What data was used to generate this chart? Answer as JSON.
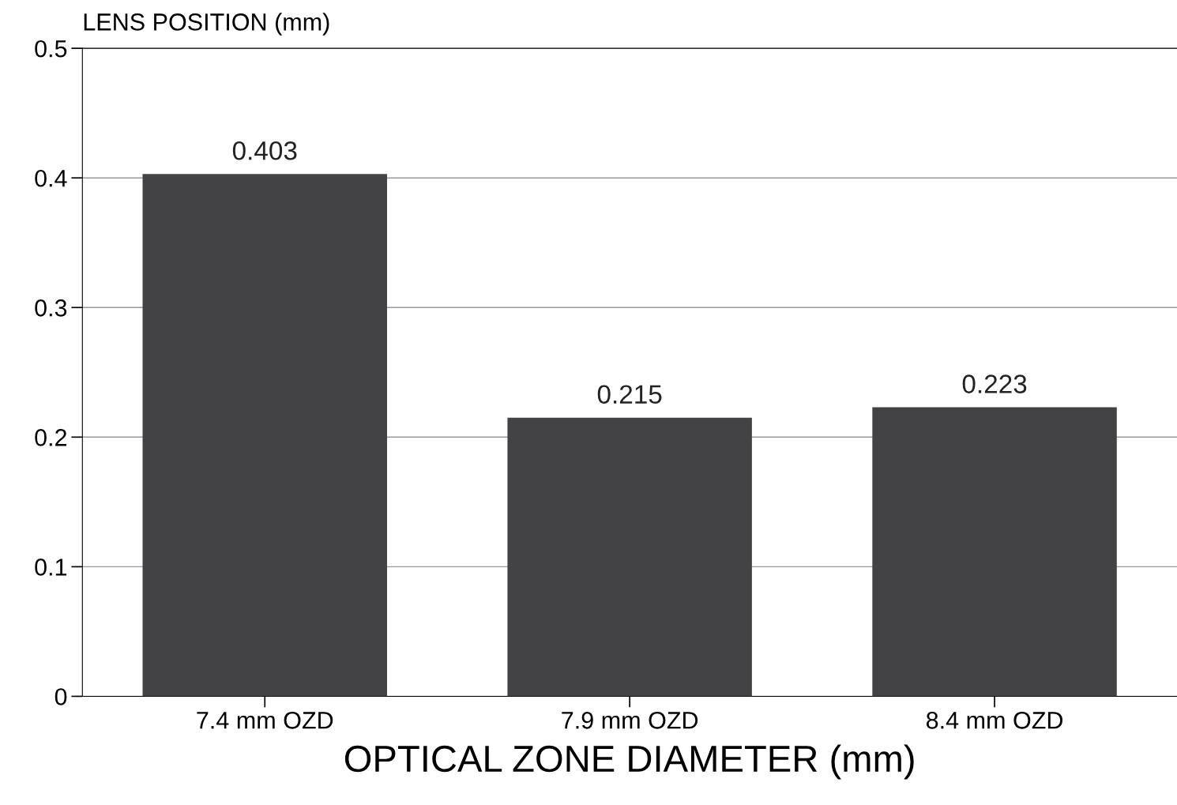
{
  "chart_data": {
    "type": "bar",
    "ylabel": "LENS POSITION (mm)",
    "xlabel": "OPTICAL ZONE DIAMETER (mm)",
    "categories": [
      "7.4 mm OZD",
      "7.9 mm OZD",
      "8.4 mm OZD"
    ],
    "values": [
      0.403,
      0.215,
      0.223
    ],
    "color": "#434346",
    "ylim": [
      0,
      0.5
    ],
    "yticks": [
      0,
      0.1,
      0.2,
      0.3,
      0.4,
      0.5
    ],
    "grid": "y",
    "data_labels": true
  }
}
